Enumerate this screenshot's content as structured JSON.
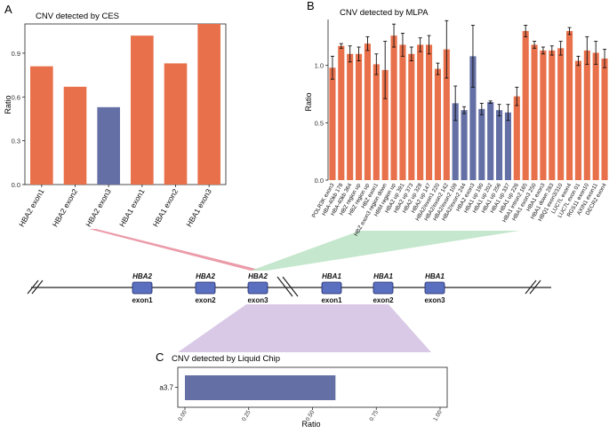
{
  "colors": {
    "orange": "#E8704A",
    "blue": "#6470A5",
    "exon": "#5A6FBF",
    "pink": "#E88A9A",
    "green": "#BFE4C8",
    "purple": "#D9C9E6",
    "axis": "#222222"
  },
  "chart_data": [
    {
      "id": "A",
      "type": "bar",
      "panel_label": "A",
      "title": "CNV detected by CES",
      "xlabel": "",
      "ylabel": "Ratio",
      "ylim": [
        0,
        1.1
      ],
      "yticks": [
        "0.0",
        "0.3",
        "0.6",
        "0.9"
      ],
      "ytick_values": [
        0,
        0.3,
        0.6,
        0.9
      ],
      "categories": [
        "HBA2 exon1",
        "HBA2 exon2",
        "HBA2 exon3",
        "HBA1 exon1",
        "HBA1 exon2",
        "HBA1 exon3"
      ],
      "values": [
        0.81,
        0.67,
        0.53,
        1.02,
        0.83,
        1.1
      ],
      "bar_colors": [
        "orange",
        "orange",
        "blue",
        "orange",
        "orange",
        "orange"
      ]
    },
    {
      "id": "B",
      "type": "bar",
      "panel_label": "B",
      "title": "CNV detected by MLPA",
      "xlabel": "",
      "ylabel": "Ratio",
      "ylim": [
        0,
        1.4
      ],
      "yticks": [
        "0.0",
        "0.5",
        "1.0"
      ],
      "ytick_values": [
        0,
        0.5,
        1.0
      ],
      "categories": [
        "POLR3K exon3",
        "HBA-40kb 178",
        "HBA-40kb 364",
        "HBZ region up",
        "HBZ region up",
        "HBZ exon1",
        "HBZ exon3 region down",
        "HBM region up",
        "HBA2 up 391",
        "HBA2 up 373",
        "HBA2 up 328",
        "HBA2 up 147",
        "HBA2/exon1 220",
        "HBA2/exon2 142",
        "HBA2/exon2 109",
        "HBA2/exon2 244",
        "HBA2 exon3",
        "HBA1 up 190",
        "HBA1 up 202",
        "HBA1 up 256",
        "HBA1 up 337",
        "HBA1 up 226",
        "HBA1 intron2 165",
        "HBA1 exon3 250",
        "HBA1 exon3",
        "HBA1 down 283",
        "HBQ1 exon3/310",
        "LUC7L exon4",
        "LUC7L exon 01",
        "RGS11 exon10",
        "AXIN1 exon11",
        "DECR2 exon4"
      ],
      "values": [
        0.98,
        1.17,
        1.1,
        1.1,
        1.19,
        1.01,
        0.96,
        1.26,
        1.18,
        1.1,
        1.18,
        1.18,
        0.97,
        1.14,
        0.67,
        0.61,
        1.08,
        0.62,
        0.68,
        0.61,
        0.59,
        0.73,
        1.3,
        1.18,
        1.13,
        1.13,
        1.15,
        1.3,
        1.04,
        1.13,
        1.11,
        1.06
      ],
      "errors": [
        0.1,
        0.02,
        0.07,
        0.06,
        0.06,
        0.09,
        0.25,
        0.1,
        0.1,
        0.06,
        0.06,
        0.08,
        0.05,
        0.25,
        0.15,
        0.03,
        0.27,
        0.05,
        0.01,
        0.05,
        0.07,
        0.08,
        0.05,
        0.03,
        0.03,
        0.04,
        0.06,
        0.03,
        0.04,
        0.12,
        0.1,
        0.08
      ],
      "bar_colors": [
        "orange",
        "orange",
        "orange",
        "orange",
        "orange",
        "orange",
        "orange",
        "orange",
        "orange",
        "orange",
        "orange",
        "orange",
        "orange",
        "orange",
        "blue",
        "blue",
        "blue",
        "blue",
        "blue",
        "blue",
        "blue",
        "orange",
        "orange",
        "orange",
        "orange",
        "orange",
        "orange",
        "orange",
        "orange",
        "orange",
        "orange",
        "orange"
      ]
    },
    {
      "id": "C",
      "type": "bar",
      "orientation": "horizontal",
      "panel_label": "C",
      "title": "CNV detected by Liquid Chip",
      "xlabel": "Ratio",
      "ylabel": "",
      "xlim": [
        0,
        1.0
      ],
      "xticks": [
        "0.00",
        "0.25",
        "0.50",
        "0.75",
        "1.00"
      ],
      "xtick_values": [
        0,
        0.25,
        0.5,
        0.75,
        1.0
      ],
      "categories": [
        "a3.7"
      ],
      "values": [
        0.59
      ],
      "bar_colors": [
        "blue"
      ]
    }
  ],
  "gene_map": {
    "genes": [
      {
        "gene": "HBA2",
        "exon": "exon1"
      },
      {
        "gene": "HBA2",
        "exon": "exon2"
      },
      {
        "gene": "HBA2",
        "exon": "exon3"
      },
      {
        "gene": "HBA1",
        "exon": "exon1"
      },
      {
        "gene": "HBA1",
        "exon": "exon2"
      },
      {
        "gene": "HBA1",
        "exon": "exon3"
      }
    ]
  }
}
